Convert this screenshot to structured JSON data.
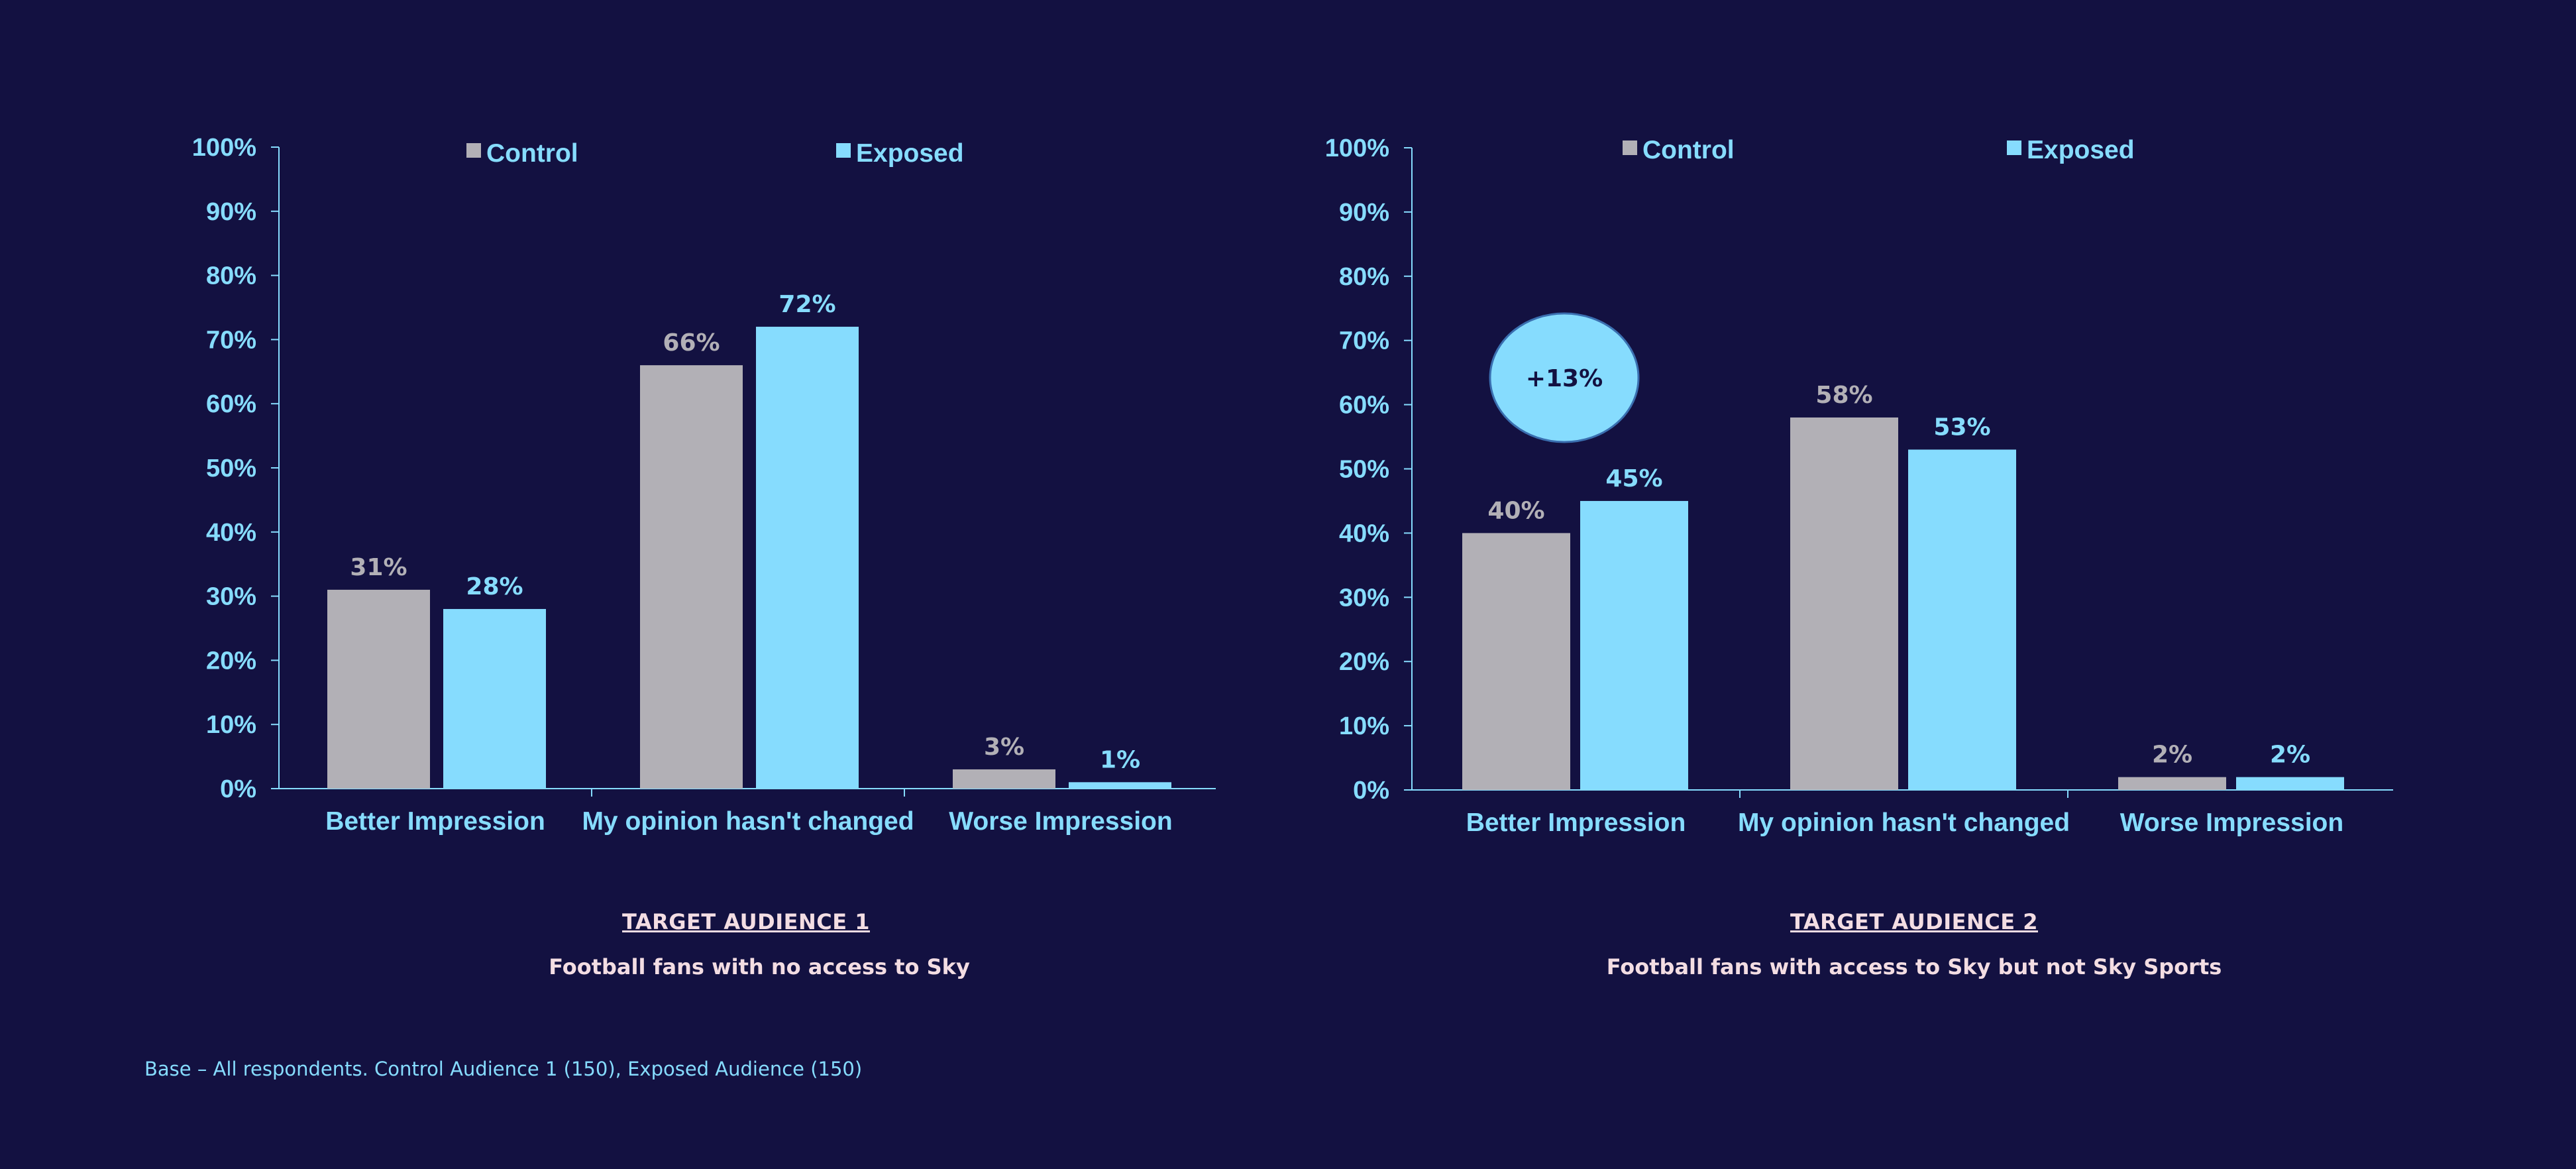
{
  "colors": {
    "background": "#131141",
    "control": "#b2b0b6",
    "exposed": "#86dcfe",
    "axis_text": "#86dcfe",
    "caption_text": "#f3dde3",
    "callout_text": "#131141"
  },
  "chart_data": [
    {
      "type": "bar",
      "categories": [
        "Better Impression",
        "My opinion hasn't changed",
        "Worse Impression"
      ],
      "series": [
        {
          "name": "Control",
          "values": [
            31,
            66,
            3
          ],
          "labels": [
            "31%",
            "66%",
            "3%"
          ]
        },
        {
          "name": "Exposed",
          "values": [
            28,
            72,
            1
          ],
          "labels": [
            "28%",
            "72%",
            "1%"
          ]
        }
      ],
      "y_ticks": [
        "0%",
        "10%",
        "20%",
        "30%",
        "40%",
        "50%",
        "60%",
        "70%",
        "80%",
        "90%",
        "100%"
      ],
      "ylim": [
        0,
        100
      ],
      "grid": false,
      "legend_position": "top"
    },
    {
      "type": "bar",
      "categories": [
        "Better Impression",
        "My opinion hasn't changed",
        "Worse Impression"
      ],
      "series": [
        {
          "name": "Control",
          "values": [
            40,
            58,
            2
          ],
          "labels": [
            "40%",
            "58%",
            "2%"
          ]
        },
        {
          "name": "Exposed",
          "values": [
            45,
            53,
            2
          ],
          "labels": [
            "45%",
            "53%",
            "2%"
          ]
        }
      ],
      "y_ticks": [
        "0%",
        "10%",
        "20%",
        "30%",
        "40%",
        "50%",
        "60%",
        "70%",
        "80%",
        "90%",
        "100%"
      ],
      "ylim": [
        0,
        100
      ],
      "grid": false,
      "legend_position": "top",
      "annotation": "+13%"
    }
  ],
  "captions": [
    {
      "title": "TARGET AUDIENCE 1",
      "subtitle": "Football fans with no access to Sky"
    },
    {
      "title": "TARGET AUDIENCE 2",
      "subtitle": "Football fans with access to Sky but not Sky Sports"
    }
  ],
  "base_note": "Base – All respondents. Control Audience 1 (150), Exposed Audience (150)"
}
